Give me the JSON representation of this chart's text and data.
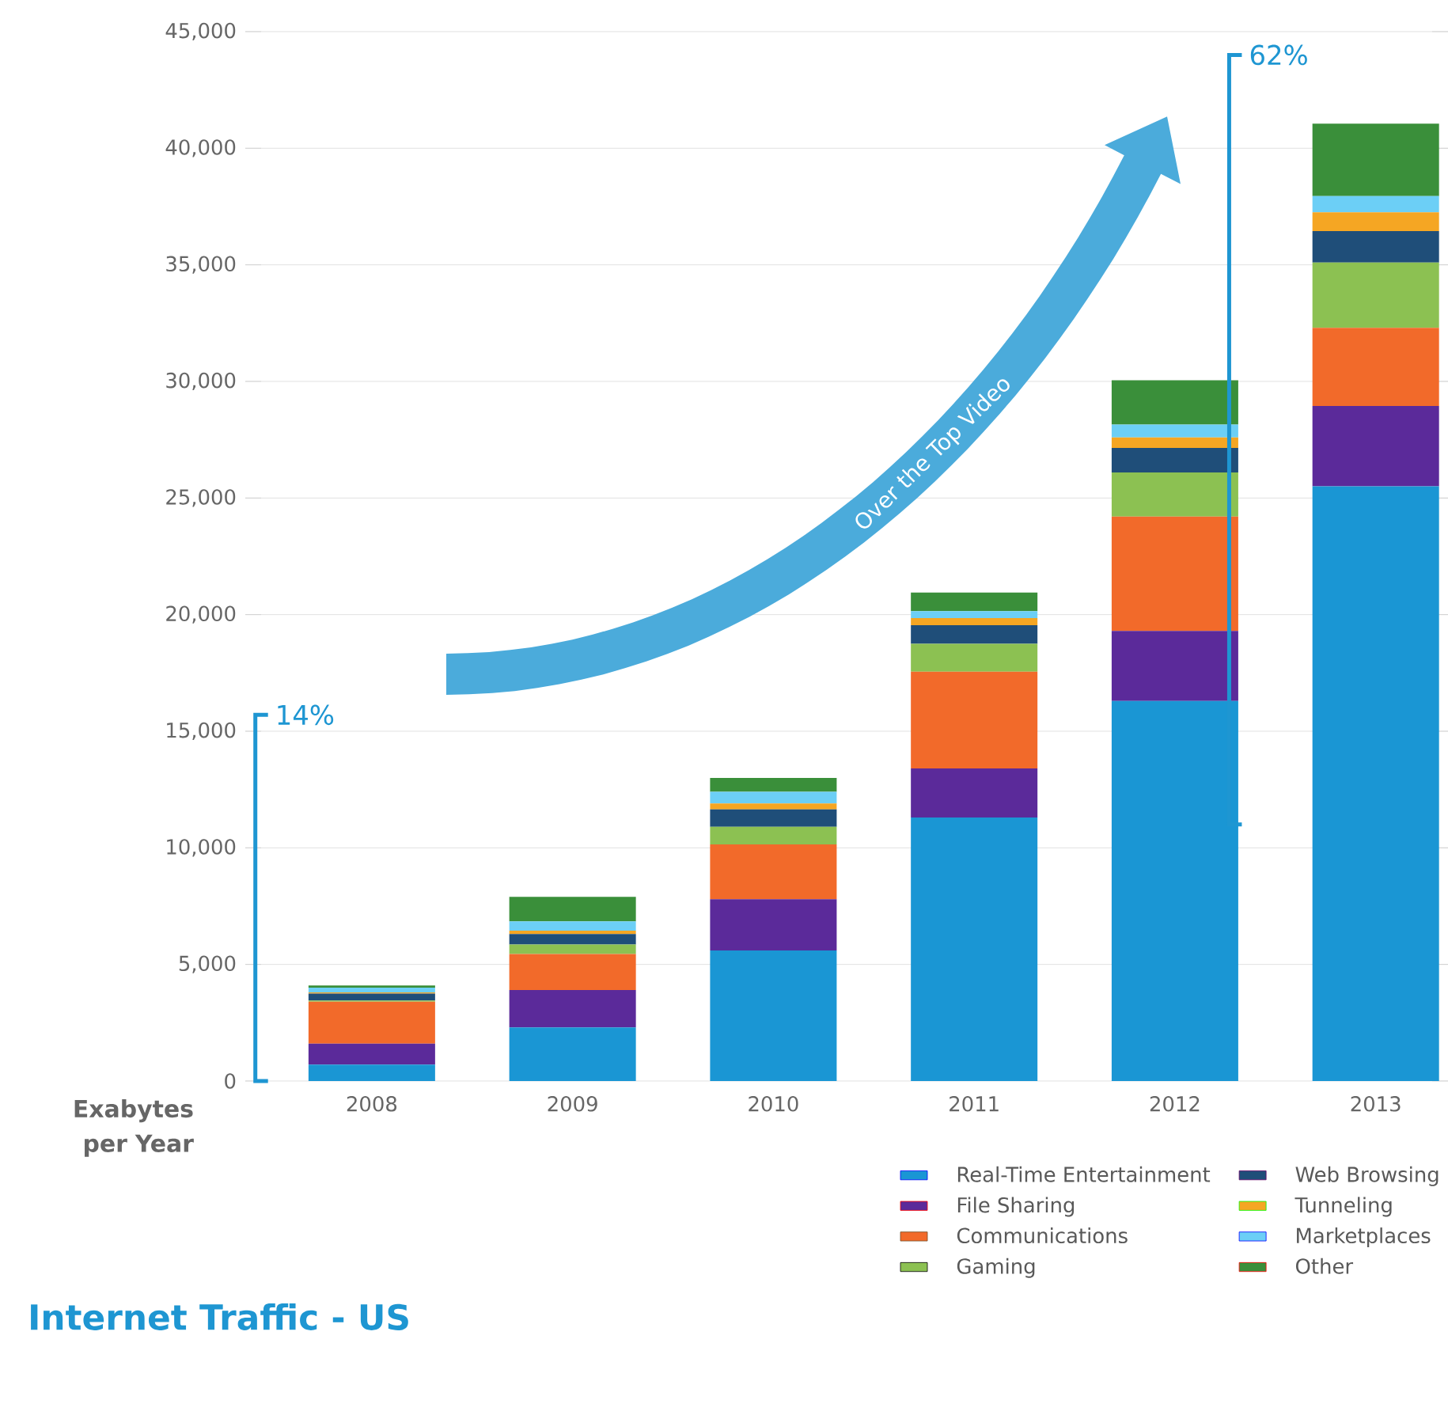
{
  "chart_data": {
    "type": "bar",
    "stacked": true,
    "title": "Internet Traffic - US",
    "ylabel": "Exabytes per Year",
    "categories": [
      "2008",
      "2009",
      "2010",
      "2011",
      "2012",
      "2013"
    ],
    "series": [
      {
        "name": "Real-Time Entertainment",
        "color": "#1a96d4",
        "values": [
          700,
          2300,
          5600,
          11300,
          16300,
          25500
        ]
      },
      {
        "name": "File Sharing",
        "color": "#5b2a9a",
        "values": [
          900,
          1600,
          2200,
          2100,
          3000,
          3450
        ]
      },
      {
        "name": "Communications",
        "color": "#f26a2a",
        "values": [
          1800,
          1550,
          2350,
          4150,
          4900,
          3350
        ]
      },
      {
        "name": "Gaming",
        "color": "#8cc152",
        "values": [
          50,
          400,
          750,
          1200,
          1900,
          2800
        ]
      },
      {
        "name": "Web Browsing",
        "color": "#1f4e79",
        "values": [
          300,
          450,
          750,
          800,
          1050,
          1350
        ]
      },
      {
        "name": "Tunneling",
        "color": "#f5a623",
        "values": [
          50,
          150,
          250,
          300,
          450,
          800
        ]
      },
      {
        "name": "Marketplaces",
        "color": "#6ccff6",
        "values": [
          200,
          400,
          500,
          300,
          550,
          700
        ]
      },
      {
        "name": "Other",
        "color": "#3a8f3a",
        "values": [
          100,
          1050,
          600,
          800,
          1900,
          3100
        ]
      }
    ],
    "ylim": [
      0,
      45000
    ],
    "yticks": [
      {
        "value": 0,
        "label": "0"
      },
      {
        "value": 5000,
        "label": "5,000"
      },
      {
        "value": 10000,
        "label": "10,000"
      },
      {
        "value": 15000,
        "label": "15,000"
      },
      {
        "value": 20000,
        "label": "20,000"
      },
      {
        "value": 25000,
        "label": "25,000"
      },
      {
        "value": 30000,
        "label": "30,000"
      },
      {
        "value": 35000,
        "label": "35,000"
      },
      {
        "value": 40000,
        "label": "40,000"
      },
      {
        "value": 45000,
        "label": "45,000"
      }
    ],
    "grid": "y",
    "legend": "bottom",
    "annotations": [
      "14%",
      "62%",
      "Over the Top Video"
    ]
  }
}
